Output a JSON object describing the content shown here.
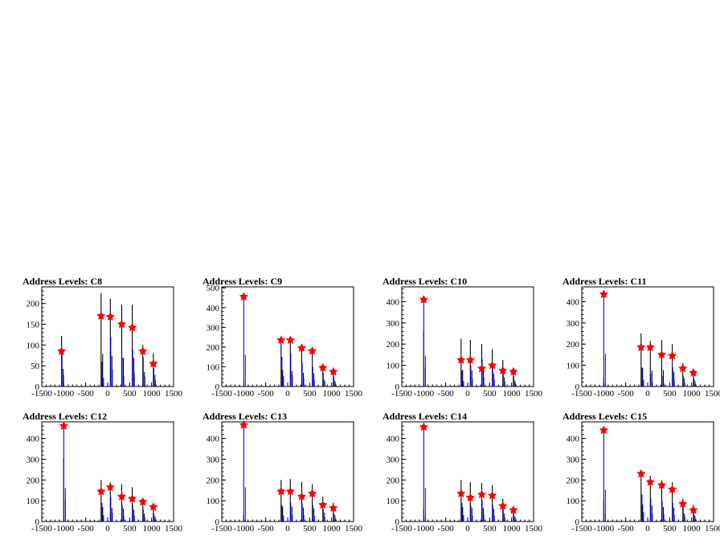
{
  "colors": {
    "background": "#ffffff",
    "frame": "#000000",
    "black_series": "#000000",
    "blue_series": "#0000ff",
    "marker": "#ff0000"
  },
  "chart_data": [
    {
      "type": "histogram",
      "title": "Address Levels: C8",
      "xlim": [
        -1500,
        1500
      ],
      "ylim": [
        0,
        240
      ],
      "grid": false,
      "x_ticks": [
        "-1500",
        "-1000",
        "-500",
        "0",
        "500",
        "1000",
        "1500"
      ],
      "y_ticks": [
        0,
        50,
        100,
        150,
        200
      ],
      "series": [
        {
          "color": "black",
          "peaks": [
            [
              -1050,
              122
            ],
            [
              -150,
              225
            ],
            [
              60,
              212
            ],
            [
              320,
              197
            ],
            [
              560,
              197
            ],
            [
              800,
              100
            ],
            [
              1040,
              80
            ]
          ]
        },
        {
          "color": "blue",
          "peaks": [
            [
              -1040,
              80
            ],
            [
              -130,
              60
            ],
            [
              70,
              120
            ],
            [
              330,
              70
            ],
            [
              570,
              90
            ],
            [
              810,
              70
            ],
            [
              1050,
              45
            ]
          ]
        }
      ],
      "markers": [
        [
          -1050,
          85
        ],
        [
          -150,
          170
        ],
        [
          60,
          168
        ],
        [
          320,
          150
        ],
        [
          560,
          142
        ],
        [
          800,
          85
        ],
        [
          1040,
          55
        ]
      ]
    },
    {
      "type": "histogram",
      "title": "Address Levels: C9",
      "xlim": [
        -1500,
        1500
      ],
      "ylim": [
        0,
        505
      ],
      "grid": false,
      "x_ticks": [
        "-1500",
        "-1000",
        "-500",
        "0",
        "500",
        "1000",
        "1500"
      ],
      "y_ticks": [
        0,
        100,
        200,
        300,
        400,
        500
      ],
      "series": [
        {
          "color": "black",
          "peaks": [
            [
              -150,
              240
            ],
            [
              60,
              225
            ],
            [
              320,
              200
            ],
            [
              560,
              190
            ],
            [
              800,
              100
            ],
            [
              1040,
              85
            ]
          ]
        },
        {
          "color": "blue",
          "peaks": [
            [
              -1000,
              460
            ],
            [
              -130,
              150
            ],
            [
              70,
              170
            ],
            [
              330,
              120
            ],
            [
              570,
              100
            ],
            [
              810,
              70
            ],
            [
              1050,
              50
            ]
          ]
        }
      ],
      "markers": [
        [
          -1000,
          455
        ],
        [
          -150,
          235
        ],
        [
          60,
          235
        ],
        [
          320,
          195
        ],
        [
          560,
          180
        ],
        [
          800,
          95
        ],
        [
          1040,
          75
        ]
      ]
    },
    {
      "type": "histogram",
      "title": "Address Levels: C10",
      "xlim": [
        -1500,
        1500
      ],
      "ylim": [
        0,
        470
      ],
      "grid": false,
      "x_ticks": [
        "-1500",
        "-1000",
        "-500",
        "0",
        "500",
        "1000",
        "1500"
      ],
      "y_ticks": [
        0,
        100,
        200,
        300,
        400
      ],
      "series": [
        {
          "color": "black",
          "peaks": [
            [
              -1000,
              260
            ],
            [
              -150,
              225
            ],
            [
              60,
              220
            ],
            [
              320,
              200
            ],
            [
              560,
              175
            ],
            [
              800,
              125
            ],
            [
              1040,
              80
            ]
          ]
        },
        {
          "color": "blue",
          "peaks": [
            [
              -1000,
              415
            ],
            [
              -130,
              75
            ],
            [
              70,
              100
            ],
            [
              330,
              130
            ],
            [
              570,
              90
            ],
            [
              810,
              70
            ],
            [
              1050,
              50
            ]
          ]
        }
      ],
      "markers": [
        [
          -1000,
          410
        ],
        [
          -150,
          125
        ],
        [
          60,
          125
        ],
        [
          320,
          85
        ],
        [
          560,
          100
        ],
        [
          800,
          75
        ],
        [
          1040,
          70
        ]
      ]
    },
    {
      "type": "histogram",
      "title": "Address Levels: C11",
      "xlim": [
        -1500,
        1500
      ],
      "ylim": [
        0,
        470
      ],
      "grid": false,
      "x_ticks": [
        "-1500",
        "-1000",
        "-500",
        "0",
        "500",
        "1000",
        "1500"
      ],
      "y_ticks": [
        0,
        100,
        200,
        300,
        400
      ],
      "series": [
        {
          "color": "black",
          "peaks": [
            [
              -1000,
              40
            ],
            [
              -150,
              250
            ],
            [
              60,
              215
            ],
            [
              320,
              220
            ],
            [
              560,
              200
            ],
            [
              800,
              110
            ],
            [
              1040,
              80
            ]
          ]
        },
        {
          "color": "blue",
          "peaks": [
            [
              -1000,
              440
            ],
            [
              -130,
              90
            ],
            [
              70,
              60
            ],
            [
              330,
              50
            ],
            [
              570,
              90
            ],
            [
              810,
              50
            ],
            [
              1050,
              40
            ]
          ]
        }
      ],
      "markers": [
        [
          -1000,
          435
        ],
        [
          -150,
          185
        ],
        [
          60,
          185
        ],
        [
          320,
          150
        ],
        [
          560,
          145
        ],
        [
          800,
          85
        ],
        [
          1040,
          65
        ]
      ]
    },
    {
      "type": "histogram",
      "title": "Address Levels: C12",
      "xlim": [
        -1500,
        1500
      ],
      "ylim": [
        0,
        480
      ],
      "grid": false,
      "x_ticks": [
        "-1500",
        "-1000",
        "-500",
        "0",
        "500",
        "1000",
        "1500"
      ],
      "y_ticks": [
        0,
        100,
        200,
        300,
        400
      ],
      "series": [
        {
          "color": "black",
          "peaks": [
            [
              -1000,
              305
            ],
            [
              -150,
              200
            ],
            [
              60,
              190
            ],
            [
              320,
              180
            ],
            [
              560,
              165
            ],
            [
              800,
              110
            ],
            [
              1040,
              75
            ]
          ]
        },
        {
          "color": "blue",
          "peaks": [
            [
              -1000,
              460
            ],
            [
              -130,
              90
            ],
            [
              70,
              120
            ],
            [
              330,
              80
            ],
            [
              570,
              80
            ],
            [
              810,
              60
            ],
            [
              1050,
              40
            ]
          ]
        }
      ],
      "markers": [
        [
          -1000,
          460
        ],
        [
          -150,
          145
        ],
        [
          60,
          165
        ],
        [
          320,
          120
        ],
        [
          560,
          110
        ],
        [
          800,
          95
        ],
        [
          1040,
          70
        ]
      ]
    },
    {
      "type": "histogram",
      "title": "Address Levels: C13",
      "xlim": [
        -1500,
        1500
      ],
      "ylim": [
        0,
        480
      ],
      "grid": false,
      "x_ticks": [
        "-1500",
        "-1000",
        "-500",
        "0",
        "500",
        "1000",
        "1500"
      ],
      "y_ticks": [
        0,
        100,
        200,
        300,
        400
      ],
      "series": [
        {
          "color": "black",
          "peaks": [
            [
              -1000,
              30
            ],
            [
              -150,
              200
            ],
            [
              60,
              205
            ],
            [
              320,
              190
            ],
            [
              560,
              180
            ],
            [
              800,
              120
            ],
            [
              1040,
              90
            ]
          ]
        },
        {
          "color": "blue",
          "peaks": [
            [
              -1000,
              470
            ],
            [
              -130,
              80
            ],
            [
              70,
              90
            ],
            [
              330,
              90
            ],
            [
              570,
              80
            ],
            [
              810,
              60
            ],
            [
              1050,
              40
            ]
          ]
        }
      ],
      "markers": [
        [
          -1000,
          465
        ],
        [
          -150,
          145
        ],
        [
          60,
          145
        ],
        [
          320,
          120
        ],
        [
          560,
          135
        ],
        [
          800,
          80
        ],
        [
          1040,
          65
        ]
      ]
    },
    {
      "type": "histogram",
      "title": "Address Levels: C14",
      "xlim": [
        -1500,
        1500
      ],
      "ylim": [
        0,
        480
      ],
      "grid": false,
      "x_ticks": [
        "-1500",
        "-1000",
        "-500",
        "0",
        "500",
        "1000",
        "1500"
      ],
      "y_ticks": [
        0,
        100,
        200,
        300,
        400
      ],
      "series": [
        {
          "color": "black",
          "peaks": [
            [
              -1000,
              60
            ],
            [
              -150,
              200
            ],
            [
              60,
              190
            ],
            [
              320,
              185
            ],
            [
              560,
              175
            ],
            [
              800,
              110
            ],
            [
              1040,
              70
            ]
          ]
        },
        {
          "color": "blue",
          "peaks": [
            [
              -1000,
              460
            ],
            [
              -130,
              90
            ],
            [
              70,
              80
            ],
            [
              330,
              100
            ],
            [
              570,
              80
            ],
            [
              810,
              60
            ],
            [
              1050,
              40
            ]
          ]
        }
      ],
      "markers": [
        [
          -1000,
          455
        ],
        [
          -150,
          135
        ],
        [
          60,
          115
        ],
        [
          320,
          130
        ],
        [
          560,
          125
        ],
        [
          800,
          75
        ],
        [
          1040,
          55
        ]
      ]
    },
    {
      "type": "histogram",
      "title": "Address Levels: C15",
      "xlim": [
        -1500,
        1500
      ],
      "ylim": [
        0,
        480
      ],
      "grid": false,
      "x_ticks": [
        "-1500",
        "-1000",
        "-500",
        "0",
        "500",
        "1000",
        "1500"
      ],
      "y_ticks": [
        0,
        100,
        200,
        300,
        400
      ],
      "series": [
        {
          "color": "black",
          "peaks": [
            [
              -1000,
              100
            ],
            [
              -150,
              235
            ],
            [
              60,
              220
            ],
            [
              320,
              200
            ],
            [
              560,
              190
            ],
            [
              800,
              110
            ],
            [
              1040,
              80
            ]
          ]
        },
        {
          "color": "blue",
          "peaks": [
            [
              -1000,
              440
            ],
            [
              -130,
              130
            ],
            [
              70,
              110
            ],
            [
              330,
              100
            ],
            [
              570,
              90
            ],
            [
              810,
              70
            ],
            [
              1050,
              40
            ]
          ]
        }
      ],
      "markers": [
        [
          -1000,
          440
        ],
        [
          -150,
          230
        ],
        [
          60,
          190
        ],
        [
          320,
          175
        ],
        [
          560,
          155
        ],
        [
          800,
          85
        ],
        [
          1040,
          55
        ]
      ]
    }
  ]
}
